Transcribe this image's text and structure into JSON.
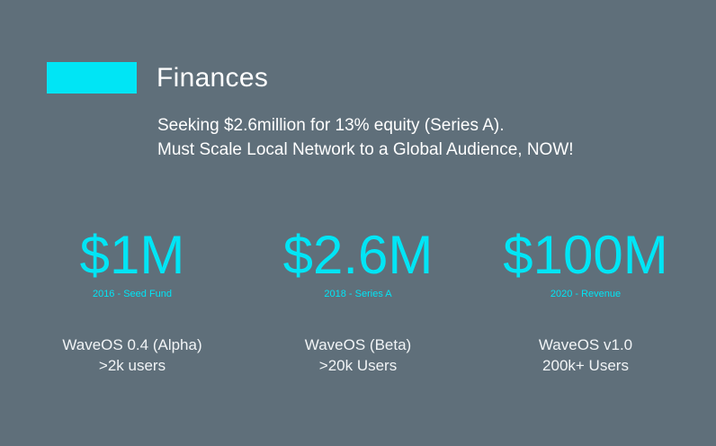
{
  "slide": {
    "title": "Finances",
    "subtitle_lines": [
      "Seeking $2.6million for 13% equity (Series A).",
      "Must Scale Local Network to a Global Audience, NOW!"
    ],
    "accent_color": "#00e5f5",
    "background_color": "#5f6f7a"
  },
  "stats": [
    {
      "value": "$1M",
      "caption": "2016 - Seed Fund",
      "desc_lines": [
        "WaveOS 0.4 (Alpha)",
        ">2k users"
      ]
    },
    {
      "value": "$2.6M",
      "caption": "2018 - Series A",
      "desc_lines": [
        "WaveOS (Beta)",
        ">20k Users"
      ]
    },
    {
      "value": "$100M",
      "caption": "2020 - Revenue",
      "desc_lines": [
        "WaveOS v1.0",
        "200k+ Users"
      ]
    }
  ]
}
